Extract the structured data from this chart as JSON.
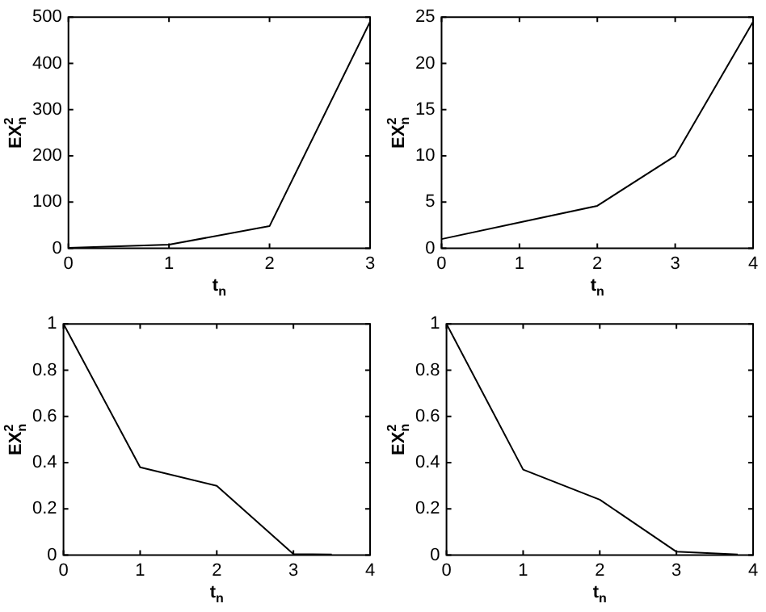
{
  "chart_data": [
    {
      "type": "line",
      "xlabel": "t$_{n}$",
      "ylabel": "EX$^{2}$$_{n}$",
      "series": [
        {
          "color": "#000000",
          "x": [
            0,
            1,
            2,
            3
          ],
          "values": [
            1,
            8,
            48,
            490
          ]
        }
      ],
      "xlim": [
        0,
        3
      ],
      "xticks": [
        0,
        1,
        2,
        3
      ],
      "ylim": [
        0,
        500
      ],
      "yticks": [
        0,
        100,
        200,
        300,
        400,
        500
      ],
      "marker": "none",
      "line_style": "solid"
    },
    {
      "type": "line",
      "xlabel": "t$_{n}$",
      "ylabel": "EX$^{2}$$_{n}$",
      "series": [
        {
          "color": "#000000",
          "x": [
            0,
            1,
            2,
            3,
            4
          ],
          "values": [
            1,
            2.8,
            4.6,
            10,
            24.5
          ]
        }
      ],
      "xlim": [
        0,
        4
      ],
      "xticks": [
        0,
        1,
        2,
        3,
        4
      ],
      "ylim": [
        0,
        25
      ],
      "yticks": [
        0,
        5,
        10,
        15,
        20,
        25
      ],
      "marker": "none",
      "line_style": "solid"
    },
    {
      "type": "line",
      "xlabel": "t$_{n}$",
      "ylabel": "EX$^{2}$$_{n}$",
      "series": [
        {
          "color": "#000000",
          "x": [
            0,
            1,
            2,
            3,
            3.5
          ],
          "values": [
            1,
            0.38,
            0.3,
            0.005,
            0.003
          ]
        }
      ],
      "xlim": [
        0,
        4
      ],
      "xticks": [
        0,
        1,
        2,
        3,
        4
      ],
      "ylim": [
        0,
        1
      ],
      "yticks": [
        0,
        0.2,
        0.4,
        0.6,
        0.8,
        1
      ],
      "marker": "none",
      "line_style": "solid"
    },
    {
      "type": "line",
      "xlabel": "t$_{n}$",
      "ylabel": "EX$^{2}$$_{n}$",
      "series": [
        {
          "color": "#000000",
          "x": [
            0,
            1,
            2,
            3,
            3.8
          ],
          "values": [
            1,
            0.37,
            0.24,
            0.015,
            0.003
          ]
        }
      ],
      "xlim": [
        0,
        4
      ],
      "xticks": [
        0,
        1,
        2,
        3,
        4
      ],
      "ylim": [
        0,
        1
      ],
      "yticks": [
        0,
        0.2,
        0.4,
        0.6,
        0.8,
        1
      ],
      "marker": "none",
      "line_style": "solid"
    }
  ]
}
